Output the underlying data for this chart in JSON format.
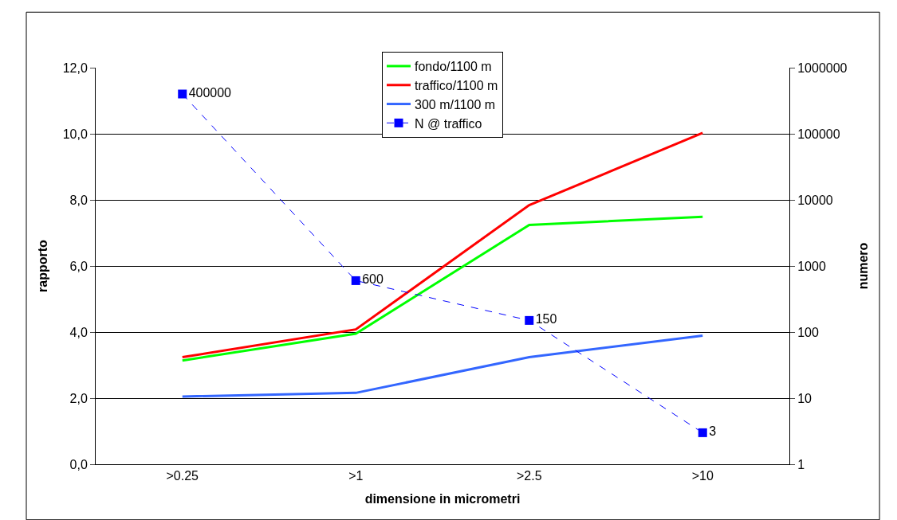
{
  "chart_data": {
    "type": "line",
    "xlabel": "dimensione in micrometri",
    "ylabel": "rapporto",
    "y2label": "numero",
    "categories": [
      ">0.25",
      ">1",
      ">2.5",
      ">10"
    ],
    "series": [
      {
        "name": "fondo/1100 m",
        "color": "#00ff00",
        "values": [
          3.14,
          3.95,
          7.24,
          7.49
        ]
      },
      {
        "name": "traffico/1100 m",
        "color": "#ff0000",
        "values": [
          3.24,
          4.08,
          7.84,
          10.03
        ]
      },
      {
        "name": "300 m/1100 m",
        "color": "#3366ff",
        "values": [
          2.05,
          2.16,
          3.24,
          3.89
        ]
      },
      {
        "name": "N @ traffico",
        "color": "#0000ff",
        "axis": "y2",
        "marker": "square",
        "line_style": "dashed",
        "values": [
          400000,
          600,
          150,
          3
        ],
        "value_labels": [
          "400000",
          "600",
          "150",
          "3"
        ]
      }
    ],
    "ylim": [
      0,
      12
    ],
    "yticks": [
      {
        "value": 0,
        "label": "0,0"
      },
      {
        "value": 2,
        "label": "2,0"
      },
      {
        "value": 4,
        "label": "4,0"
      },
      {
        "value": 6,
        "label": "6,0"
      },
      {
        "value": 8,
        "label": "8,0"
      },
      {
        "value": 10,
        "label": "10,0"
      },
      {
        "value": 12,
        "label": "12,0"
      }
    ],
    "y2lim": [
      1,
      1000000
    ],
    "y2ticks": [
      1,
      10,
      100,
      1000,
      10000,
      100000,
      1000000
    ],
    "log": "y2",
    "grid": "y",
    "legend": "top"
  }
}
